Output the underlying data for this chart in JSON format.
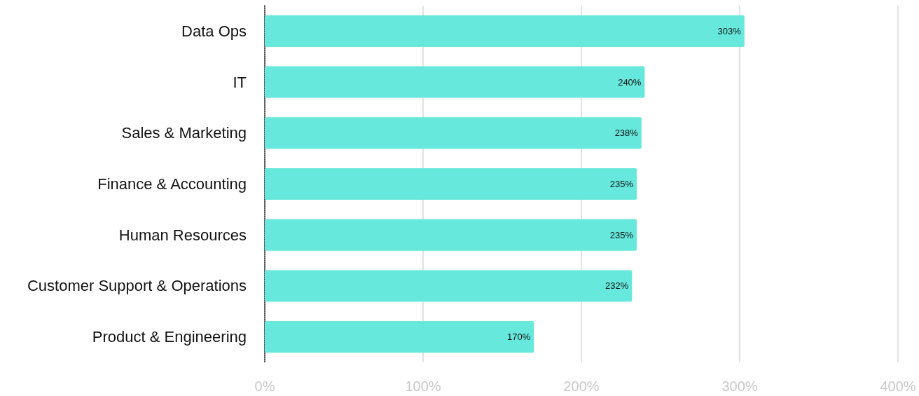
{
  "chart_data": {
    "type": "bar",
    "orientation": "horizontal",
    "categories": [
      "Data Ops",
      "IT",
      "Sales & Marketing",
      "Finance & Accounting",
      "Human Resources",
      "Customer Support & Operations",
      "Product & Engineering"
    ],
    "values": [
      303,
      240,
      238,
      235,
      235,
      232,
      170
    ],
    "value_labels": [
      "303%",
      "240%",
      "238%",
      "235%",
      "235%",
      "232%",
      "170%"
    ],
    "color": "#66e8dc",
    "xlim": [
      0,
      400
    ],
    "xticks": [
      {
        "value": 0,
        "label": "0%"
      },
      {
        "value": 100,
        "label": "100%"
      },
      {
        "value": 200,
        "label": "200%"
      },
      {
        "value": 300,
        "label": "300%"
      },
      {
        "value": 400,
        "label": "400%"
      }
    ],
    "grid": "x"
  }
}
